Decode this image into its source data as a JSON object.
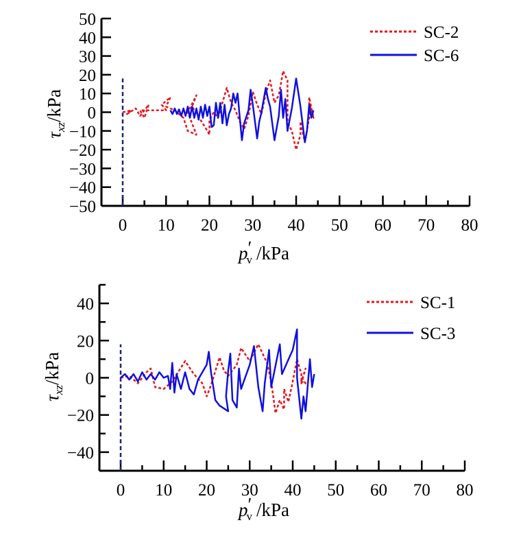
{
  "chart_data": [
    {
      "type": "line",
      "xlabel_main": "p",
      "xlabel_prime": "′",
      "xlabel_sub": "v",
      "xlabel_unit": "/kPa",
      "ylabel_main": "τ",
      "ylabel_sub": "xz",
      "ylabel_unit": "/kPa",
      "xlim": [
        -5,
        80
      ],
      "ylim": [
        -50,
        50
      ],
      "xticks": [
        "0",
        "10",
        "20",
        "30",
        "40",
        "50",
        "60",
        "70",
        "80"
      ],
      "yticks": [
        "50",
        "40",
        "30",
        "20",
        "10",
        "0",
        "−10",
        "−20",
        "−30",
        "−40",
        "−50"
      ],
      "ytick_values": [
        50,
        40,
        30,
        20,
        10,
        0,
        -10,
        -20,
        -30,
        -40,
        -50
      ],
      "yminor_values": [],
      "legend_position": "top-right",
      "reference_line": {
        "x": 0,
        "y": [
          -50,
          18
        ],
        "color": "#1a237e"
      },
      "series": [
        {
          "name": "SC-2",
          "color": "#e8141b",
          "style": "dotted",
          "x": [
            0,
            2,
            1,
            3,
            4,
            6,
            5,
            4,
            10,
            9,
            11,
            10,
            12,
            14,
            15,
            17,
            16,
            15,
            17,
            16,
            19,
            20,
            20,
            21,
            22,
            24,
            25,
            26,
            27,
            28,
            29,
            30,
            31,
            32,
            33,
            34,
            35,
            36,
            37,
            38,
            38,
            39,
            40,
            41,
            41,
            42,
            43,
            43,
            44,
            43
          ],
          "y": [
            0,
            1,
            -1,
            2,
            -2,
            4,
            -3,
            1,
            1,
            4,
            8,
            3,
            1,
            -3,
            -10,
            -12,
            -6,
            0,
            9,
            3,
            -8,
            -12,
            -4,
            0,
            -3,
            13,
            5,
            1,
            -5,
            -9,
            -2,
            11,
            4,
            -1,
            10,
            17,
            5,
            9,
            22,
            17,
            -5,
            -10,
            -20,
            -12,
            -5,
            -16,
            -3,
            8,
            -3,
            5
          ]
        },
        {
          "name": "SC-6",
          "color": "#1010e0",
          "style": "solid",
          "x": [
            11,
            11.5,
            12,
            12.5,
            13,
            13.5,
            14,
            14.5,
            15,
            15.5,
            16,
            16.5,
            17,
            17.5,
            18,
            18.5,
            19,
            19.5,
            20,
            20.5,
            21,
            21.5,
            22,
            22.5,
            23,
            23.5,
            24,
            24.5,
            25,
            25.5,
            26,
            26.5,
            27,
            27.5,
            28,
            29,
            29.5,
            30,
            31,
            31.5,
            32,
            33,
            33.5,
            34,
            35,
            36,
            36.5,
            37,
            37.5,
            38,
            39,
            40,
            41,
            42,
            42.5,
            43,
            43.5,
            44
          ],
          "y": [
            1,
            -1,
            2,
            -1,
            1.5,
            -2,
            2,
            -2,
            3,
            -3,
            3,
            -3,
            2,
            -4,
            3,
            -3,
            4,
            -2,
            3,
            -8,
            -7,
            5,
            -3,
            5,
            -6,
            4,
            -7,
            -1,
            2,
            10,
            5,
            10,
            -3,
            -15,
            -6,
            1,
            12,
            4,
            -14,
            -5,
            0,
            13,
            7,
            3,
            -15,
            -2,
            12,
            -3,
            7,
            -10,
            2,
            18,
            3,
            -16,
            -10,
            4,
            -3,
            1
          ]
        }
      ]
    },
    {
      "type": "line",
      "xlabel_main": "p",
      "xlabel_prime": "′",
      "xlabel_sub": "v",
      "xlabel_unit": "/kPa",
      "ylabel_main": "τ",
      "ylabel_sub": "xz",
      "ylabel_unit": "/kPa",
      "xlim": [
        -5,
        80
      ],
      "ylim": [
        -50,
        50
      ],
      "xticks": [
        "0",
        "10",
        "20",
        "30",
        "40",
        "50",
        "60",
        "70",
        "80"
      ],
      "yticks": [
        "40",
        "20",
        "0",
        "−20",
        "−40"
      ],
      "ytick_values": [
        40,
        20,
        0,
        -20,
        -40
      ],
      "yminor_values": [
        50,
        30,
        10,
        -10,
        -30,
        -50
      ],
      "legend_position": "top-right",
      "reference_line": {
        "x": 0,
        "y": [
          -50,
          18
        ],
        "color": "#1a237e"
      },
      "series": [
        {
          "name": "SC-1",
          "color": "#e8141b",
          "style": "dotted",
          "x": [
            0,
            2,
            4,
            6,
            7,
            8,
            10,
            12,
            15,
            17,
            19,
            20,
            21,
            23,
            24,
            25,
            27,
            28,
            30,
            32,
            34,
            35,
            36,
            37,
            38,
            38,
            39,
            40,
            41,
            42,
            42,
            43,
            42,
            43,
            42
          ],
          "y": [
            0,
            1,
            -3,
            3,
            5,
            -5,
            -6,
            -2,
            9,
            2,
            -3,
            -10,
            -4,
            11,
            4,
            1,
            7,
            16,
            9,
            18,
            8,
            -2,
            -19,
            -12,
            -17,
            -6,
            -13,
            -2,
            10,
            2,
            -3,
            5,
            -2,
            -3,
            0
          ]
        },
        {
          "name": "SC-3",
          "color": "#1010e0",
          "style": "solid",
          "x": [
            0,
            1,
            2,
            3,
            4,
            5,
            6,
            7,
            8,
            9,
            10,
            11,
            11.5,
            12,
            12.5,
            13,
            14,
            15,
            16,
            17,
            18,
            20,
            20.5,
            21,
            22,
            23,
            25,
            24.5,
            25,
            25.5,
            26,
            27,
            27.5,
            28,
            30,
            31,
            32,
            33,
            33.5,
            34.5,
            35,
            37,
            37.5,
            40,
            41,
            41,
            42,
            42.5,
            43,
            44,
            44.5,
            45
          ],
          "y": [
            0,
            2,
            -1,
            2,
            -2,
            3,
            -1,
            2,
            -1,
            3,
            0,
            1,
            -6,
            8,
            -8,
            2,
            -6,
            3,
            -6,
            -9,
            -1,
            7,
            14,
            3,
            -12,
            -15,
            -18,
            -10,
            4,
            13,
            -12,
            -16,
            5,
            -6,
            7,
            17,
            -5,
            -18,
            -3,
            15,
            -5,
            18,
            2,
            15,
            26,
            0,
            -22,
            -10,
            -18,
            10,
            -5,
            2
          ]
        }
      ]
    }
  ]
}
